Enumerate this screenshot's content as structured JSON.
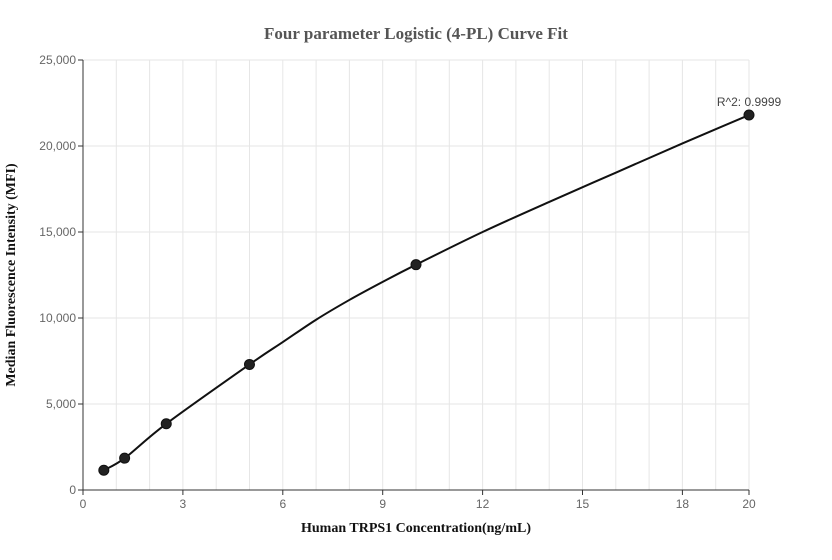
{
  "chart_data": {
    "type": "scatter",
    "title": "Four parameter Logistic (4-PL) Curve Fit",
    "xlabel": "Human TRPS1 Concentration(ng/mL)",
    "ylabel": "Median Fluorescence Intensity (MFI)",
    "xlim": [
      0,
      20
    ],
    "ylim": [
      0,
      25000
    ],
    "xticks": [
      0,
      3,
      6,
      9,
      12,
      15,
      18,
      20
    ],
    "xtick_labels": [
      "0",
      "3",
      "6",
      "9",
      "12",
      "15",
      "18",
      "20"
    ],
    "yticks": [
      0,
      5000,
      10000,
      15000,
      20000,
      25000
    ],
    "ytick_labels": [
      "0",
      "5,000",
      "10,000",
      "15,000",
      "20,000",
      "25,000"
    ],
    "grid": true,
    "series": [
      {
        "x": [
          0.625,
          1.25,
          2.5,
          5,
          10,
          20
        ],
        "y": [
          1150,
          1850,
          3850,
          7300,
          13100,
          21800
        ]
      }
    ],
    "fit_curve": {
      "x": [
        0.625,
        1.25,
        2.5,
        5,
        6,
        7,
        8,
        9,
        10,
        12,
        14,
        16,
        18,
        20
      ],
      "y": [
        1150,
        1850,
        3850,
        7300,
        8600,
        9900,
        11050,
        12100,
        13100,
        15000,
        16750,
        18450,
        20150,
        21800
      ]
    },
    "annotation": "R^2: 0.9999",
    "colors": {
      "marker": "#222222",
      "line": "#111111",
      "grid": "#e6e6e6",
      "axis": "#333333"
    }
  }
}
